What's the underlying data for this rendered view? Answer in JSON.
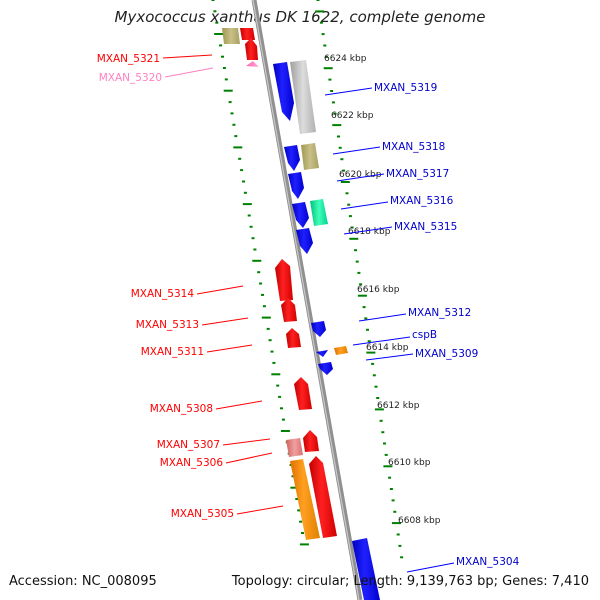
{
  "title": "Myxococcus xanthus DK 1622, complete genome",
  "footer": {
    "accession": "Accession: NC_008095",
    "topology": "Topology: circular; Length: 9,139,763 bp; Genes: 7,410"
  },
  "scale_labels": [
    "6624 kbp",
    "6622 kbp",
    "6620 kbp",
    "6618 kbp",
    "6616 kbp",
    "6614 kbp",
    "6612 kbp",
    "6610 kbp",
    "6608 kbp"
  ],
  "genes_left": [
    "MXAN_5321",
    "MXAN_5320",
    "MXAN_5314",
    "MXAN_5313",
    "MXAN_5311",
    "MXAN_5308",
    "MXAN_5307",
    "MXAN_5306",
    "MXAN_5305"
  ],
  "genes_right": [
    "MXAN_5319",
    "MXAN_5318",
    "MXAN_5317",
    "MXAN_5316",
    "MXAN_5315",
    "MXAN_5312",
    "cspB",
    "MXAN_5309",
    "MXAN_5304"
  ],
  "colors": {
    "forward_strand": "#ff0000",
    "reverse_strand": "#0000ff",
    "faded_gene": "#ff80c0",
    "ticks": "#008000",
    "backbone": "#808080",
    "orange_feature": "#ff9900",
    "olive_feature": "#b8b070",
    "grey_feature": "#c0c0c0",
    "green_feature": "#00ee99",
    "pink_feature": "#e88080"
  }
}
